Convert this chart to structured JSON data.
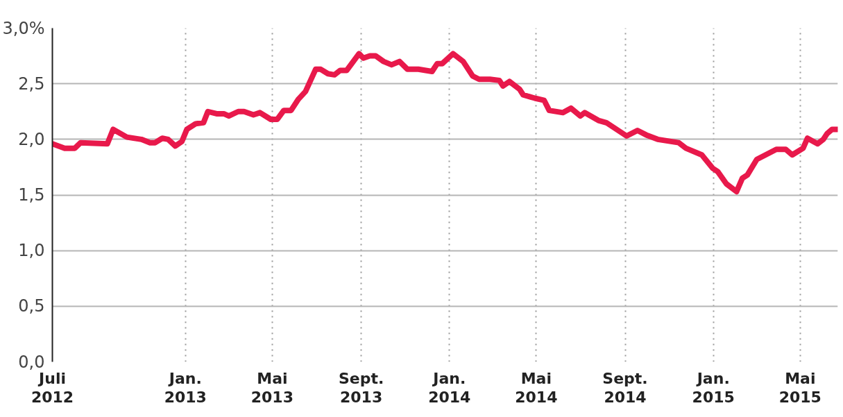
{
  "chart_data": {
    "type": "line",
    "x": [
      "2012-07-01",
      "2012-07-18",
      "2012-08-01",
      "2012-08-09",
      "2012-09-15",
      "2012-09-23",
      "2012-10-12",
      "2012-11-01",
      "2012-11-13",
      "2012-11-20",
      "2012-11-30",
      "2012-12-08",
      "2012-12-18",
      "2012-12-27",
      "2013-01-03",
      "2013-01-15",
      "2013-01-26",
      "2013-02-01",
      "2013-02-13",
      "2013-02-23",
      "2013-03-02",
      "2013-03-15",
      "2013-03-23",
      "2013-04-05",
      "2013-04-14",
      "2013-04-29",
      "2013-05-08",
      "2013-05-17",
      "2013-05-27",
      "2013-06-06",
      "2013-06-16",
      "2013-06-30",
      "2013-07-07",
      "2013-07-17",
      "2013-07-26",
      "2013-08-03",
      "2013-08-12",
      "2013-08-29",
      "2013-09-04",
      "2013-09-13",
      "2013-09-21",
      "2013-10-02",
      "2013-10-13",
      "2013-10-24",
      "2013-11-04",
      "2013-11-19",
      "2013-12-08",
      "2013-12-15",
      "2013-12-22",
      "2014-01-06",
      "2014-01-20",
      "2014-02-02",
      "2014-02-11",
      "2014-02-26",
      "2014-03-11",
      "2014-03-16",
      "2014-03-25",
      "2014-04-08",
      "2014-04-13",
      "2014-04-29",
      "2014-05-12",
      "2014-05-19",
      "2014-06-07",
      "2014-06-18",
      "2014-07-01",
      "2014-07-07",
      "2014-07-26",
      "2014-08-06",
      "2014-09-03",
      "2014-09-18",
      "2014-09-30",
      "2014-10-16",
      "2014-11-14",
      "2014-11-24",
      "2014-12-16",
      "2014-12-31",
      "2015-01-07",
      "2015-01-19",
      "2015-02-02",
      "2015-02-10",
      "2015-02-17",
      "2015-03-02",
      "2015-03-29",
      "2015-04-11",
      "2015-04-20",
      "2015-05-05",
      "2015-05-11",
      "2015-05-25",
      "2015-06-02",
      "2015-06-07",
      "2015-06-14",
      "2015-06-21"
    ],
    "series": [
      {
        "color": "#e8194b",
        "values": [
          1.96,
          1.92,
          1.92,
          1.97,
          1.96,
          2.09,
          2.02,
          2.0,
          1.97,
          1.97,
          2.01,
          2.0,
          1.94,
          1.98,
          2.09,
          2.14,
          2.15,
          2.25,
          2.23,
          2.23,
          2.21,
          2.25,
          2.25,
          2.22,
          2.24,
          2.18,
          2.18,
          2.26,
          2.26,
          2.36,
          2.43,
          2.63,
          2.63,
          2.59,
          2.58,
          2.62,
          2.62,
          2.77,
          2.73,
          2.75,
          2.75,
          2.7,
          2.67,
          2.7,
          2.63,
          2.63,
          2.61,
          2.68,
          2.68,
          2.77,
          2.7,
          2.57,
          2.54,
          2.54,
          2.53,
          2.48,
          2.52,
          2.45,
          2.4,
          2.37,
          2.35,
          2.26,
          2.24,
          2.28,
          2.21,
          2.24,
          2.17,
          2.15,
          2.03,
          2.08,
          2.04,
          2.0,
          1.97,
          1.92,
          1.86,
          1.74,
          1.71,
          1.6,
          1.53,
          1.65,
          1.68,
          1.82,
          1.91,
          1.91,
          1.86,
          1.92,
          2.01,
          1.96,
          2.0,
          2.05,
          2.09,
          2.09
        ]
      }
    ],
    "xlim": [
      "2012-07-01",
      "2015-06-22"
    ],
    "xticks": [
      {
        "value": "2012-07-01",
        "label": "Juli\n2012"
      },
      {
        "value": "2013-01-01",
        "label": "Jan.\n2013"
      },
      {
        "value": "2013-05-01",
        "label": "Mai\n2013"
      },
      {
        "value": "2013-09-01",
        "label": "Sept.\n2013"
      },
      {
        "value": "2014-01-01",
        "label": "Jan.\n2014"
      },
      {
        "value": "2014-05-01",
        "label": "Mai\n2014"
      },
      {
        "value": "2014-09-01",
        "label": "Sept.\n2014"
      },
      {
        "value": "2015-01-01",
        "label": "Jan.\n2015"
      },
      {
        "value": "2015-05-01",
        "label": "Mai\n2015"
      }
    ],
    "ylim": [
      0,
      3.0
    ],
    "yticks": [
      {
        "value": 0,
        "label": "0,0"
      },
      {
        "value": 0.5,
        "label": "0,5"
      },
      {
        "value": 1.0,
        "label": "1,0"
      },
      {
        "value": 1.5,
        "label": "1,5"
      },
      {
        "value": 2.0,
        "label": "2,0"
      },
      {
        "value": 2.5,
        "label": "2,5"
      },
      {
        "value": 3.0,
        "label": "3,0%"
      }
    ],
    "grid": true,
    "marker": "none",
    "line_style": "solid"
  }
}
